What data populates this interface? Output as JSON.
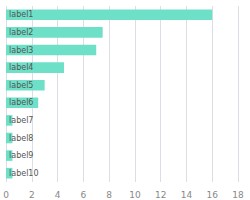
{
  "chart_data": {
    "type": "bar",
    "orientation": "horizontal",
    "categories": [
      "label1",
      "label2",
      "label3",
      "label4",
      "label5",
      "label6",
      "label7",
      "label8",
      "label9",
      "label10"
    ],
    "values": [
      16,
      7.5,
      7.0,
      4.5,
      3.0,
      2.5,
      0.5,
      0.5,
      0.5,
      0.5
    ],
    "color": "#6ee0c8",
    "xlim": [
      0,
      18
    ],
    "xticks": [
      0,
      2,
      4,
      6,
      8,
      10,
      12,
      14,
      16,
      18
    ],
    "grid": true,
    "tick_labels": "x"
  }
}
